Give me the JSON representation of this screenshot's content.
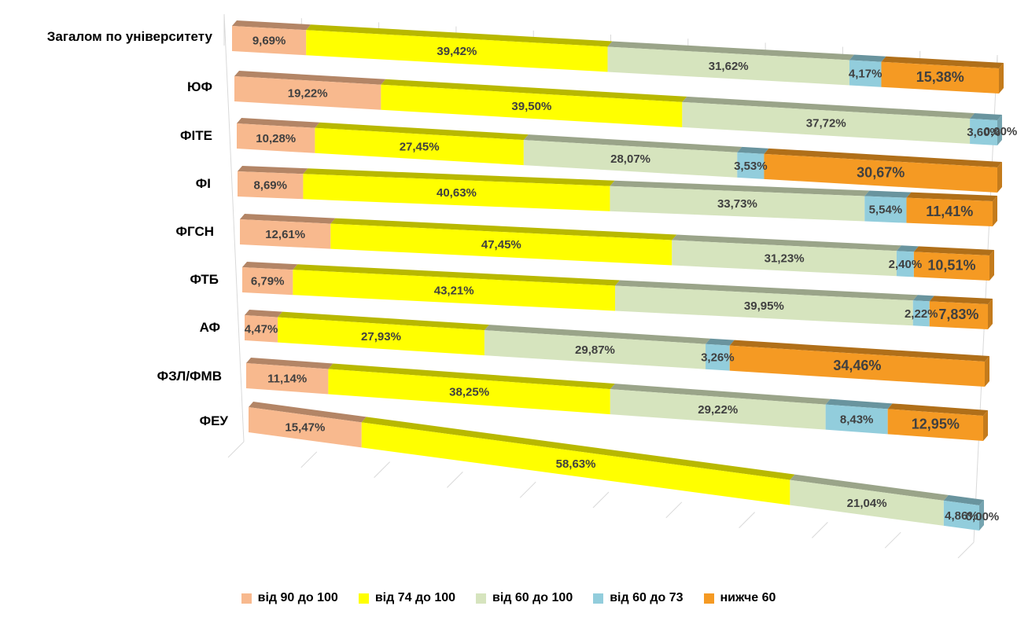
{
  "chart_data": {
    "type": "bar",
    "orientation": "horizontal",
    "stacked": "100%",
    "style": "3d",
    "legend_position": "bottom",
    "grid": true,
    "categories": [
      "Загалом по університету",
      "ЮФ",
      "ФІТЕ",
      "ФІ",
      "ФГСН",
      "ФТБ",
      "АФ",
      "ФЗЛ/ФМВ",
      "ФЕУ"
    ],
    "series": [
      {
        "name": "від 90 до 100",
        "color": "#F8B98E",
        "values": [
          9.69,
          19.22,
          10.28,
          8.69,
          12.61,
          6.79,
          4.47,
          11.14,
          15.47
        ],
        "labels": [
          "9,69%",
          "19,22%",
          "10,28%",
          "8,69%",
          "12,61%",
          "6,79%",
          "4,47%",
          "11,14%",
          "15,47%"
        ]
      },
      {
        "name": "від 74 до 100",
        "color": "#FFFF00",
        "values": [
          39.42,
          39.5,
          27.45,
          40.63,
          47.45,
          43.21,
          27.93,
          38.25,
          58.63
        ],
        "labels": [
          "39,42%",
          "39,50%",
          "27,45%",
          "40,63%",
          "47,45%",
          "43,21%",
          "27,93%",
          "38,25%",
          "58,63%"
        ]
      },
      {
        "name": "від 60 до 100",
        "color": "#D6E4BE",
        "values": [
          31.62,
          37.72,
          28.07,
          33.73,
          31.23,
          39.95,
          29.87,
          29.22,
          21.04
        ],
        "labels": [
          "31,62%",
          "37,72%",
          "28,07%",
          "33,73%",
          "31,23%",
          "39,95%",
          "29,87%",
          "29,22%",
          "21,04%"
        ]
      },
      {
        "name": "від 60 до 73",
        "color": "#92CDDC",
        "values": [
          4.17,
          3.6,
          3.53,
          5.54,
          2.4,
          2.22,
          3.26,
          8.43,
          4.86
        ],
        "labels": [
          "4,17%",
          "3,60%",
          "3,53%",
          "5,54%",
          "2,40%",
          "2,22%",
          "3,26%",
          "8,43%",
          "4,86%"
        ]
      },
      {
        "name": "нижче 60",
        "color": "#F59A23",
        "values": [
          15.38,
          0.0,
          30.67,
          11.41,
          10.51,
          7.83,
          34.46,
          12.95,
          0.0
        ],
        "labels": [
          "15,38%",
          "0,00%",
          "30,67%",
          "11,41%",
          "10,51%",
          "7,83%",
          "34,46%",
          "12,95%",
          "0,00%"
        ]
      }
    ]
  }
}
